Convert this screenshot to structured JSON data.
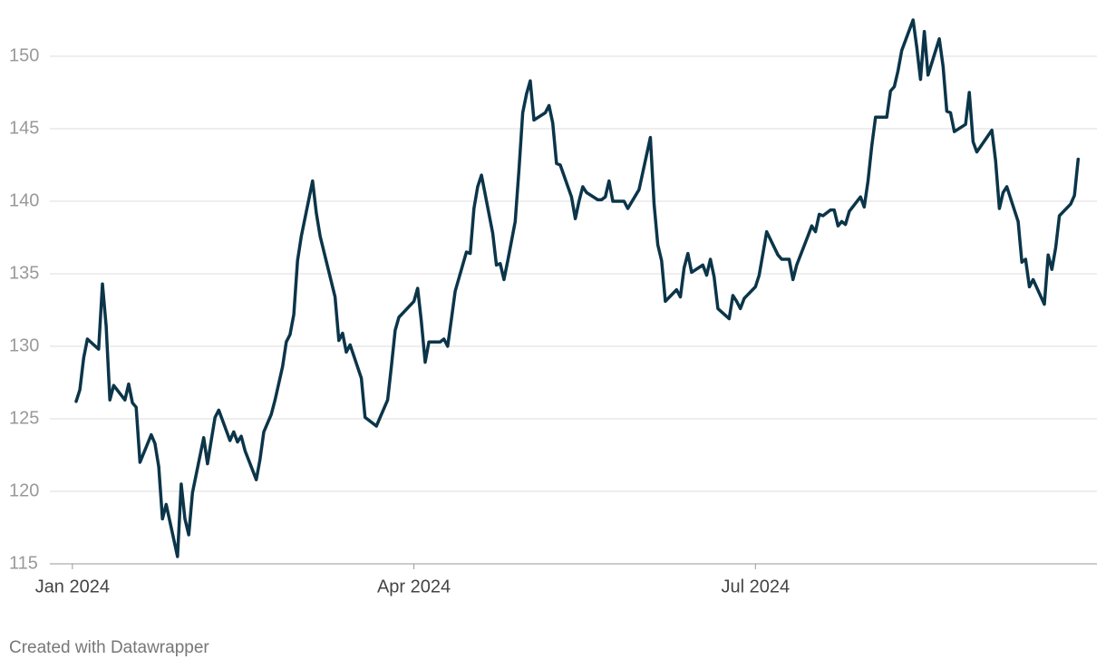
{
  "chart_data": {
    "type": "line",
    "footer": "Created with Datawrapper",
    "x": [
      1,
      2,
      3,
      4,
      7,
      8,
      9,
      10,
      11,
      14,
      15,
      16,
      17,
      18,
      21,
      22,
      23,
      24,
      25,
      28,
      29,
      30,
      31,
      32,
      35,
      36,
      37,
      38,
      39,
      42,
      43,
      44,
      45,
      46,
      49,
      50,
      51,
      53,
      54,
      56,
      57,
      58,
      59,
      60,
      61,
      64,
      65,
      66,
      70,
      71,
      72,
      73,
      74,
      77,
      78,
      81,
      84,
      85,
      86,
      87,
      91,
      92,
      93,
      94,
      95,
      98,
      99,
      100,
      101,
      102,
      105,
      106,
      107,
      108,
      109,
      112,
      113,
      114,
      115,
      116,
      118,
      119,
      120,
      121,
      122,
      123,
      126,
      127,
      128,
      129,
      130,
      133,
      134,
      135,
      136,
      137,
      140,
      141,
      142,
      143,
      144,
      147,
      148,
      151,
      154,
      155,
      156,
      157,
      158,
      161,
      162,
      163,
      164,
      165,
      168,
      169,
      170,
      171,
      172,
      175,
      176,
      177,
      178,
      179,
      182,
      183,
      184,
      185,
      188,
      189,
      191,
      192,
      193,
      196,
      197,
      198,
      199,
      200,
      202,
      203,
      204,
      205,
      206,
      207,
      210,
      211,
      212,
      213,
      214,
      217,
      218,
      219,
      220,
      221,
      224,
      225,
      226,
      227,
      228,
      231,
      232,
      233,
      234,
      235,
      238,
      239,
      240,
      241,
      245,
      246,
      247,
      248,
      249,
      252,
      253,
      254,
      255,
      256,
      259,
      260,
      261,
      262,
      263,
      266,
      267,
      268
    ],
    "series": [
      {
        "color": "#0b3549",
        "values": [
          126.2,
          127.0,
          129.2,
          130.5,
          129.8,
          134.3,
          131.4,
          126.3,
          127.3,
          126.3,
          127.4,
          126.1,
          125.8,
          122.0,
          123.9,
          123.3,
          121.7,
          118.1,
          119.1,
          115.5,
          120.5,
          118.1,
          117.0,
          119.9,
          123.7,
          121.9,
          123.5,
          125.1,
          125.6,
          123.5,
          124.1,
          123.4,
          123.8,
          122.8,
          120.8,
          122.2,
          124.1,
          125.3,
          126.3,
          128.6,
          130.3,
          130.8,
          132.2,
          135.9,
          137.6,
          141.4,
          139.2,
          137.6,
          133.4,
          130.4,
          130.9,
          129.6,
          130.1,
          127.8,
          125.1,
          124.5,
          126.3,
          128.6,
          131.1,
          132.0,
          133.1,
          134.0,
          131.7,
          128.9,
          130.3,
          130.3,
          130.5,
          130.0,
          131.9,
          133.8,
          136.5,
          136.4,
          139.5,
          141.0,
          141.8,
          137.8,
          135.6,
          135.7,
          134.6,
          135.9,
          138.6,
          142.2,
          146.1,
          147.4,
          148.3,
          145.6,
          146.1,
          146.6,
          145.4,
          142.6,
          142.5,
          140.3,
          138.8,
          140.0,
          141.0,
          140.6,
          140.1,
          140.1,
          140.3,
          141.4,
          140.0,
          140.0,
          139.5,
          140.8,
          144.4,
          139.8,
          137.0,
          135.9,
          133.1,
          133.9,
          133.4,
          135.4,
          136.4,
          135.1,
          135.6,
          134.9,
          136.0,
          134.8,
          132.6,
          131.9,
          133.5,
          133.1,
          132.6,
          133.3,
          134.1,
          134.9,
          136.4,
          137.9,
          136.3,
          136.0,
          136.0,
          134.6,
          135.6,
          137.6,
          138.3,
          137.9,
          139.1,
          139.0,
          139.4,
          139.4,
          138.3,
          138.6,
          138.4,
          139.3,
          140.3,
          139.6,
          141.4,
          143.8,
          145.8,
          145.8,
          147.6,
          147.9,
          149.0,
          150.4,
          152.5,
          150.6,
          148.4,
          151.7,
          148.7,
          151.2,
          149.3,
          146.2,
          146.1,
          144.8,
          145.3,
          147.5,
          144.1,
          143.4,
          144.9,
          142.8,
          139.5,
          140.6,
          141.0,
          138.6,
          135.8,
          136.0,
          134.1,
          134.6,
          132.9,
          136.3,
          135.3,
          136.8,
          139.0,
          139.8,
          140.4,
          142.9
        ]
      }
    ],
    "xlim": [
      -6,
      273
    ],
    "xticks": [
      {
        "value": 0,
        "label": "Jan 2024"
      },
      {
        "value": 91,
        "label": "Apr 2024"
      },
      {
        "value": 182,
        "label": "Jul 2024"
      }
    ],
    "ylim": [
      115,
      153
    ],
    "yticks": [
      115,
      120,
      125,
      130,
      135,
      140,
      145,
      150
    ],
    "grid": true
  }
}
